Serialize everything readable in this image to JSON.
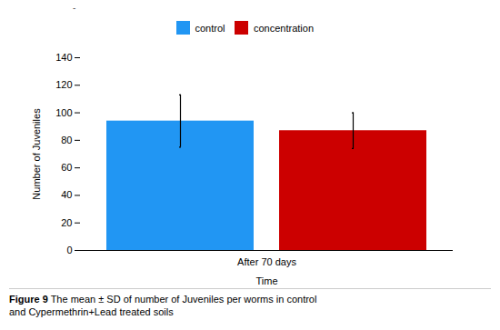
{
  "chart_data": {
    "type": "bar",
    "categories": [
      "After 70 days"
    ],
    "series": [
      {
        "name": "control",
        "color": "#2196F3",
        "values": [
          94
        ],
        "errors": [
          19
        ]
      },
      {
        "name": "concentration",
        "color": "#CC0000",
        "values": [
          87
        ],
        "errors": [
          13
        ]
      }
    ],
    "xlabel": "Time",
    "ylabel": "Number of Juveniles",
    "ylim": [
      0,
      140
    ],
    "yticks": [
      0,
      20,
      40,
      60,
      80,
      100,
      120,
      140
    ],
    "legend": "top",
    "annotations": [
      "-"
    ],
    "caption_bold": "Figure 9",
    "caption": " The mean ± SD of number of Juveniles per worms in control\nand Cypermethrin+Lead treated soils"
  }
}
